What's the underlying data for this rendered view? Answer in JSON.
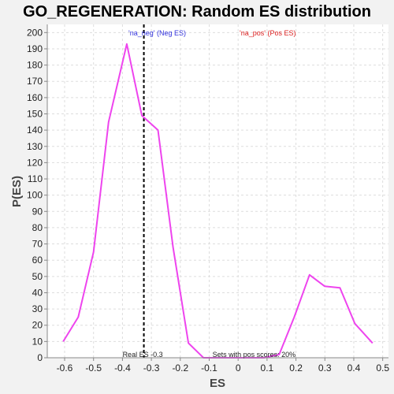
{
  "chart_data": {
    "type": "line",
    "title": "GO_REGENERATION: Random ES distribution",
    "xlabel": "ES",
    "ylabel": "P(ES)",
    "xlim": [
      -0.66,
      0.52
    ],
    "ylim": [
      0,
      205
    ],
    "xticks": [
      -0.6,
      -0.5,
      -0.4,
      -0.3,
      -0.2,
      -0.1,
      0.0,
      0.1,
      0.2,
      0.3,
      0.4,
      0.5
    ],
    "xtick_labels": [
      "-0.6",
      "-0.5",
      "-0.4",
      "-0.3",
      "-0.2",
      "-0.1",
      "0",
      "0.1",
      "0.2",
      "0.3",
      "0.4",
      "0.5"
    ],
    "yticks": [
      0,
      10,
      20,
      30,
      40,
      50,
      60,
      70,
      80,
      90,
      100,
      110,
      120,
      130,
      140,
      150,
      160,
      170,
      180,
      190,
      200
    ],
    "grid": true,
    "series": [
      {
        "color": "#ee44ee",
        "x": [
          -0.605,
          -0.553,
          -0.5,
          -0.448,
          -0.385,
          -0.333,
          -0.277,
          -0.225,
          -0.172,
          -0.12,
          -0.068,
          -0.015,
          0.037,
          0.09,
          0.142,
          0.194,
          0.247,
          0.299,
          0.352,
          0.404,
          0.465
        ],
        "y": [
          10,
          25,
          65,
          145,
          193,
          149,
          140,
          68,
          9,
          0,
          0,
          0,
          0,
          0,
          2,
          25,
          51,
          44,
          43,
          21,
          9
        ]
      }
    ],
    "vline": {
      "x": -0.326,
      "color": "#000000",
      "style": "dashed"
    },
    "legend": [
      {
        "text": "'na_neg' (Neg ES)",
        "color": "#3333dd"
      },
      {
        "text": "'na_pos' (Pos ES)",
        "color": "#dd2222"
      }
    ],
    "annotations": [
      {
        "text": "Real ES -0.3",
        "x": -0.33
      },
      {
        "text": "Sets with pos scores: 20%",
        "x": 0.055
      }
    ]
  }
}
